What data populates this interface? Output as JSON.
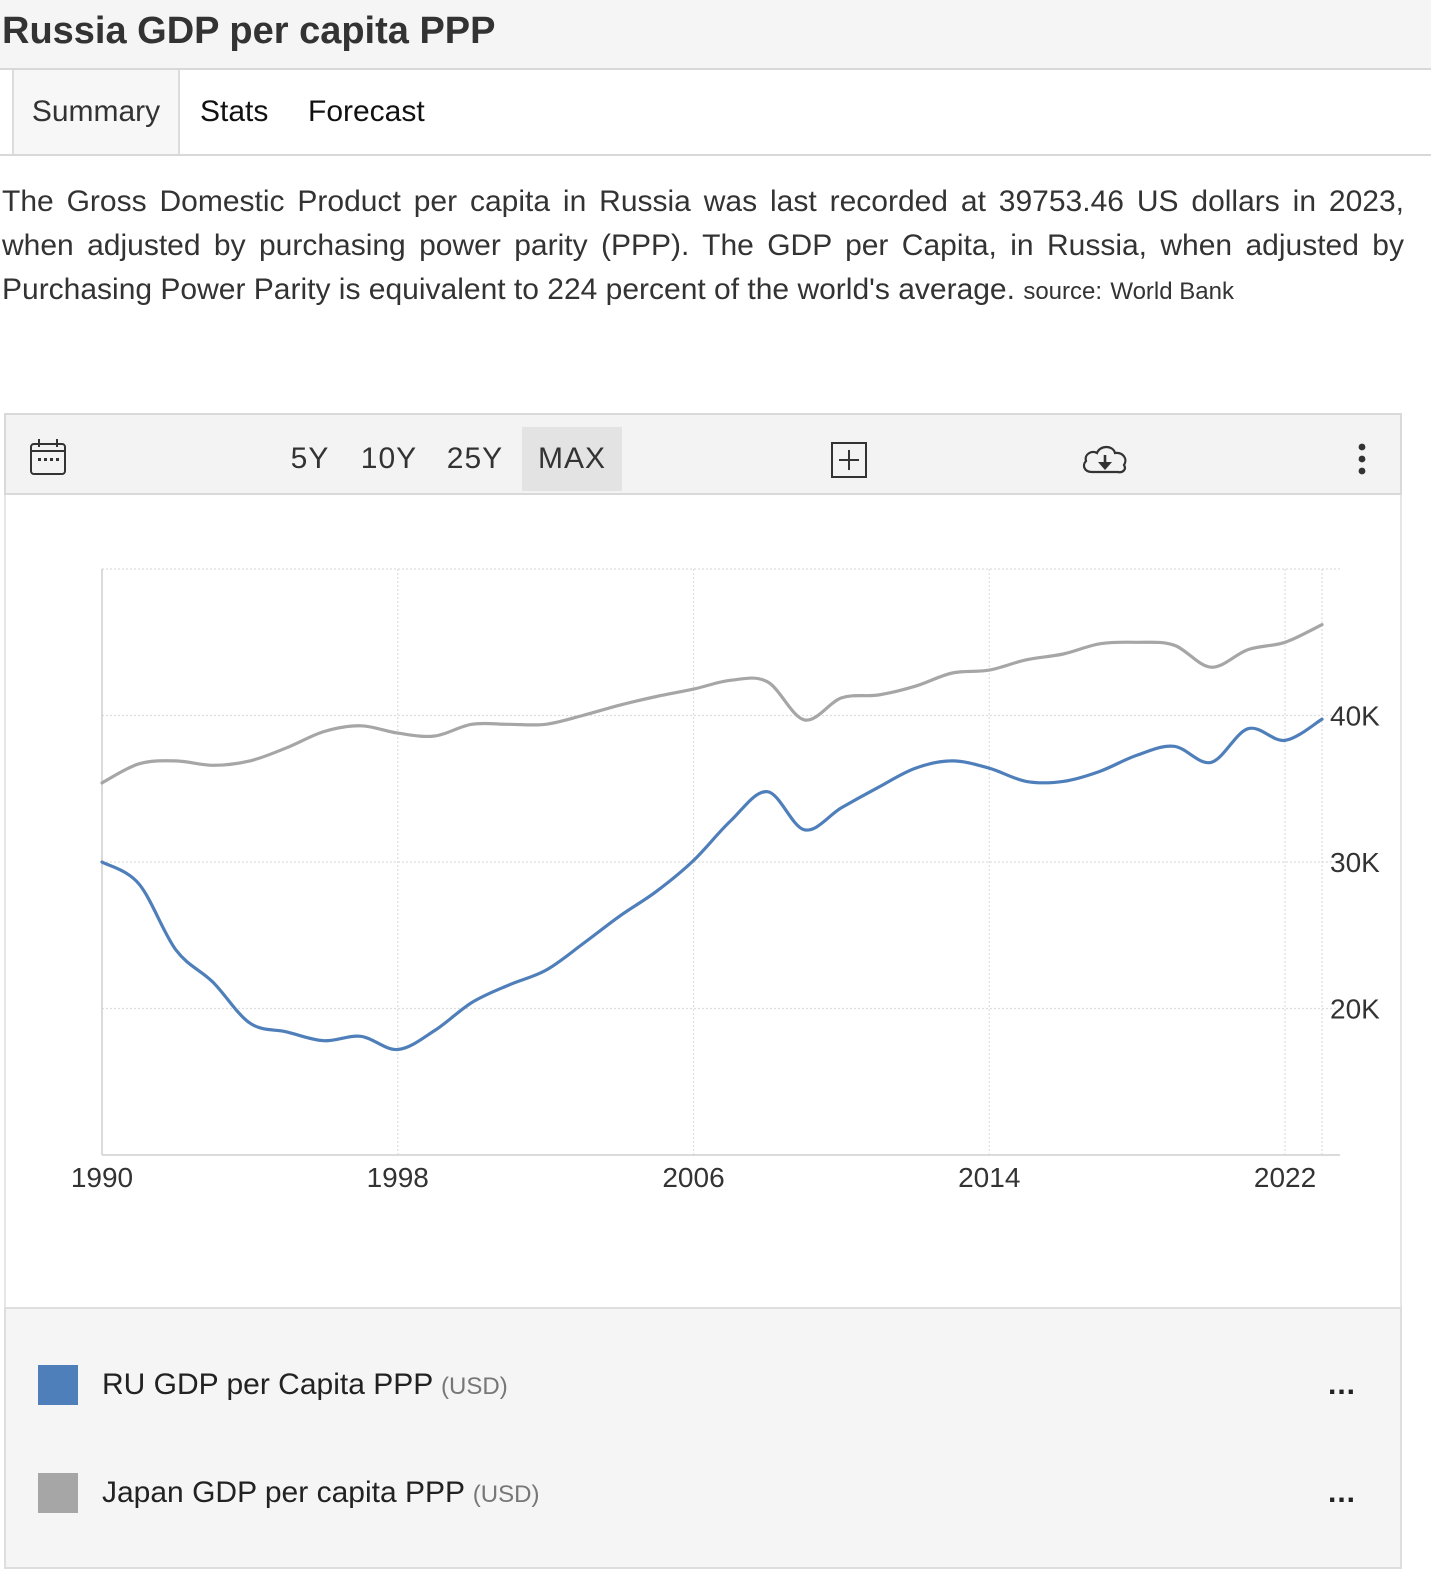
{
  "page": {
    "title": "Russia GDP per capita PPP",
    "tabs": [
      {
        "label": "Summary"
      },
      {
        "label": "Stats"
      },
      {
        "label": "Forecast"
      }
    ],
    "description": "The Gross Domestic Product per capita in Russia was last recorded at 39753.46 US dollars in 2023, when adjusted by purchasing power parity (PPP). The GDP per Capita, in Russia, when adjusted by Purchasing Power Parity is equivalent to 224 percent of the world's average.",
    "source_label": "source:",
    "source_name": "World Bank"
  },
  "toolbar": {
    "calendar_icon": "calendar-icon",
    "ranges": [
      {
        "label": "5Y"
      },
      {
        "label": "10Y"
      },
      {
        "label": "25Y"
      },
      {
        "label": "MAX"
      }
    ],
    "selected_range": "MAX",
    "add_icon": "plus-box-icon",
    "download_icon": "cloud-download-icon",
    "menu_icon": "vertical-ellipsis-icon"
  },
  "legend": {
    "items": [
      {
        "label": "RU GDP per Capita PPP",
        "unit": "(USD)",
        "color": "#4f7fba",
        "more": "..."
      },
      {
        "label": "Japan GDP per capita PPP",
        "unit": "(USD)",
        "color": "#a6a6a6",
        "more": "..."
      }
    ]
  },
  "chart_data": {
    "type": "line",
    "title": "",
    "xlabel": "",
    "ylabel": "",
    "x_ticks": [
      "1990",
      "1998",
      "2006",
      "2014",
      "2022"
    ],
    "y_ticks": [
      "20K",
      "30K",
      "40K"
    ],
    "y_tick_values": [
      20000,
      30000,
      40000
    ],
    "xlim": [
      1990,
      2023
    ],
    "ylim": [
      10000,
      50000
    ],
    "grid": true,
    "y_axis_position": "right",
    "x": [
      1990,
      1991,
      1992,
      1993,
      1994,
      1995,
      1996,
      1997,
      1998,
      1999,
      2000,
      2001,
      2002,
      2003,
      2004,
      2005,
      2006,
      2007,
      2008,
      2009,
      2010,
      2011,
      2012,
      2013,
      2014,
      2015,
      2016,
      2017,
      2018,
      2019,
      2020,
      2021,
      2022,
      2023
    ],
    "series": [
      {
        "name": "RU GDP per Capita PPP",
        "color": "#4f7fba",
        "values": [
          30000,
          28500,
          24000,
          21800,
          19000,
          18400,
          17800,
          18100,
          17200,
          18500,
          20400,
          21600,
          22600,
          24400,
          26300,
          28000,
          30100,
          32800,
          34800,
          32200,
          33700,
          35100,
          36400,
          36900,
          36400,
          35500,
          35500,
          36200,
          37300,
          37900,
          36800,
          39100,
          38300,
          39750
        ]
      },
      {
        "name": "Japan GDP per capita PPP",
        "color": "#a6a6a6",
        "values": [
          35400,
          36700,
          36900,
          36600,
          36900,
          37800,
          38900,
          39300,
          38800,
          38600,
          39400,
          39400,
          39400,
          40000,
          40700,
          41300,
          41800,
          42400,
          42300,
          39700,
          41200,
          41400,
          42000,
          42900,
          43100,
          43800,
          44200,
          44900,
          45000,
          44800,
          43300,
          44500,
          45000,
          46200
        ]
      }
    ]
  }
}
